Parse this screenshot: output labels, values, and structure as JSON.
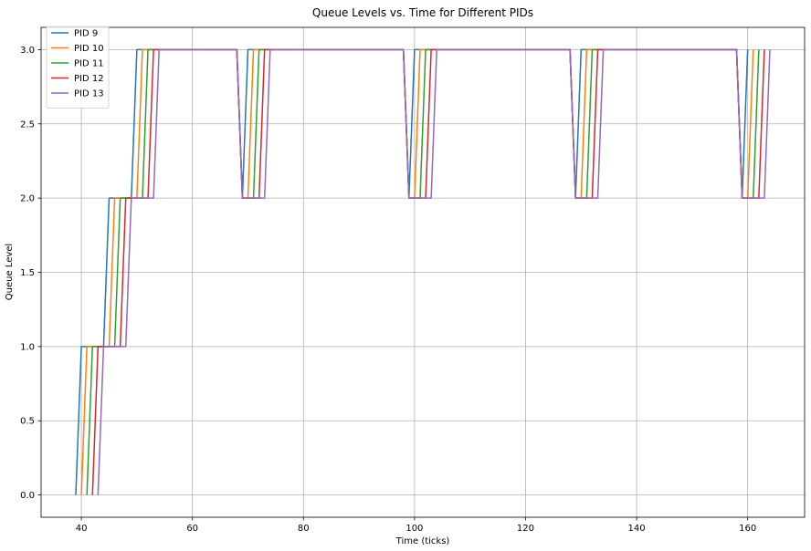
{
  "chart_data": {
    "type": "line",
    "title": "Queue Levels vs. Time for Different PIDs",
    "xlabel": "Time (ticks)",
    "ylabel": "Queue Level",
    "xlim": [
      32.75,
      170.25
    ],
    "ylim": [
      -0.15,
      3.15
    ],
    "xticks": [
      40,
      60,
      80,
      100,
      120,
      140,
      160
    ],
    "yticks": [
      "0.0",
      "0.5",
      "1.0",
      "1.5",
      "2.0",
      "2.5",
      "3.0"
    ],
    "grid": true,
    "legend_position": "top-left",
    "series": [
      {
        "name": "PID 9",
        "color": "#1f77b4",
        "points": [
          [
            39,
            0
          ],
          [
            40,
            1
          ],
          [
            44,
            1
          ],
          [
            45,
            2
          ],
          [
            49,
            2
          ],
          [
            50,
            3
          ],
          [
            68,
            3
          ],
          [
            69,
            2
          ],
          [
            70,
            3
          ],
          [
            98,
            3
          ],
          [
            99,
            2
          ],
          [
            100,
            3
          ],
          [
            128,
            3
          ],
          [
            129,
            2
          ],
          [
            130,
            3
          ],
          [
            158,
            3
          ],
          [
            159,
            2
          ],
          [
            160,
            3
          ]
        ]
      },
      {
        "name": "PID 10",
        "color": "#ff7f0e",
        "points": [
          [
            40,
            0
          ],
          [
            41,
            1
          ],
          [
            45,
            1
          ],
          [
            46,
            2
          ],
          [
            50,
            2
          ],
          [
            51,
            3
          ],
          [
            68,
            3
          ],
          [
            69,
            2
          ],
          [
            70,
            2
          ],
          [
            71,
            3
          ],
          [
            98,
            3
          ],
          [
            99,
            2
          ],
          [
            100,
            2
          ],
          [
            101,
            3
          ],
          [
            128,
            3
          ],
          [
            129,
            2
          ],
          [
            130,
            2
          ],
          [
            131,
            3
          ],
          [
            158,
            3
          ],
          [
            159,
            2
          ],
          [
            160,
            2
          ],
          [
            161,
            3
          ]
        ]
      },
      {
        "name": "PID 11",
        "color": "#2ca02c",
        "points": [
          [
            41,
            0
          ],
          [
            42,
            1
          ],
          [
            46,
            1
          ],
          [
            47,
            2
          ],
          [
            51,
            2
          ],
          [
            52,
            3
          ],
          [
            68,
            3
          ],
          [
            69,
            2
          ],
          [
            71,
            2
          ],
          [
            72,
            3
          ],
          [
            98,
            3
          ],
          [
            99,
            2
          ],
          [
            101,
            2
          ],
          [
            102,
            3
          ],
          [
            128,
            3
          ],
          [
            129,
            2
          ],
          [
            131,
            2
          ],
          [
            132,
            3
          ],
          [
            158,
            3
          ],
          [
            159,
            2
          ],
          [
            161,
            2
          ],
          [
            162,
            3
          ]
        ]
      },
      {
        "name": "PID 12",
        "color": "#d62728",
        "points": [
          [
            42,
            0
          ],
          [
            43,
            1
          ],
          [
            47,
            1
          ],
          [
            48,
            2
          ],
          [
            52,
            2
          ],
          [
            53,
            3
          ],
          [
            68,
            3
          ],
          [
            69,
            2
          ],
          [
            72,
            2
          ],
          [
            73,
            3
          ],
          [
            98,
            3
          ],
          [
            99,
            2
          ],
          [
            102,
            2
          ],
          [
            103,
            3
          ],
          [
            128,
            3
          ],
          [
            129,
            2
          ],
          [
            132,
            2
          ],
          [
            133,
            3
          ],
          [
            158,
            3
          ],
          [
            159,
            2
          ],
          [
            162,
            2
          ],
          [
            163,
            3
          ]
        ]
      },
      {
        "name": "PID 13",
        "color": "#9467bd",
        "points": [
          [
            43,
            0
          ],
          [
            44,
            1
          ],
          [
            48,
            1
          ],
          [
            49,
            2
          ],
          [
            53,
            2
          ],
          [
            54,
            3
          ],
          [
            68,
            3
          ],
          [
            69,
            2
          ],
          [
            73,
            2
          ],
          [
            74,
            3
          ],
          [
            98,
            3
          ],
          [
            99,
            2
          ],
          [
            103,
            2
          ],
          [
            104,
            3
          ],
          [
            128,
            3
          ],
          [
            129,
            2
          ],
          [
            133,
            2
          ],
          [
            134,
            3
          ],
          [
            158,
            3
          ],
          [
            159,
            2
          ],
          [
            163,
            2
          ],
          [
            164,
            3
          ]
        ]
      }
    ]
  }
}
